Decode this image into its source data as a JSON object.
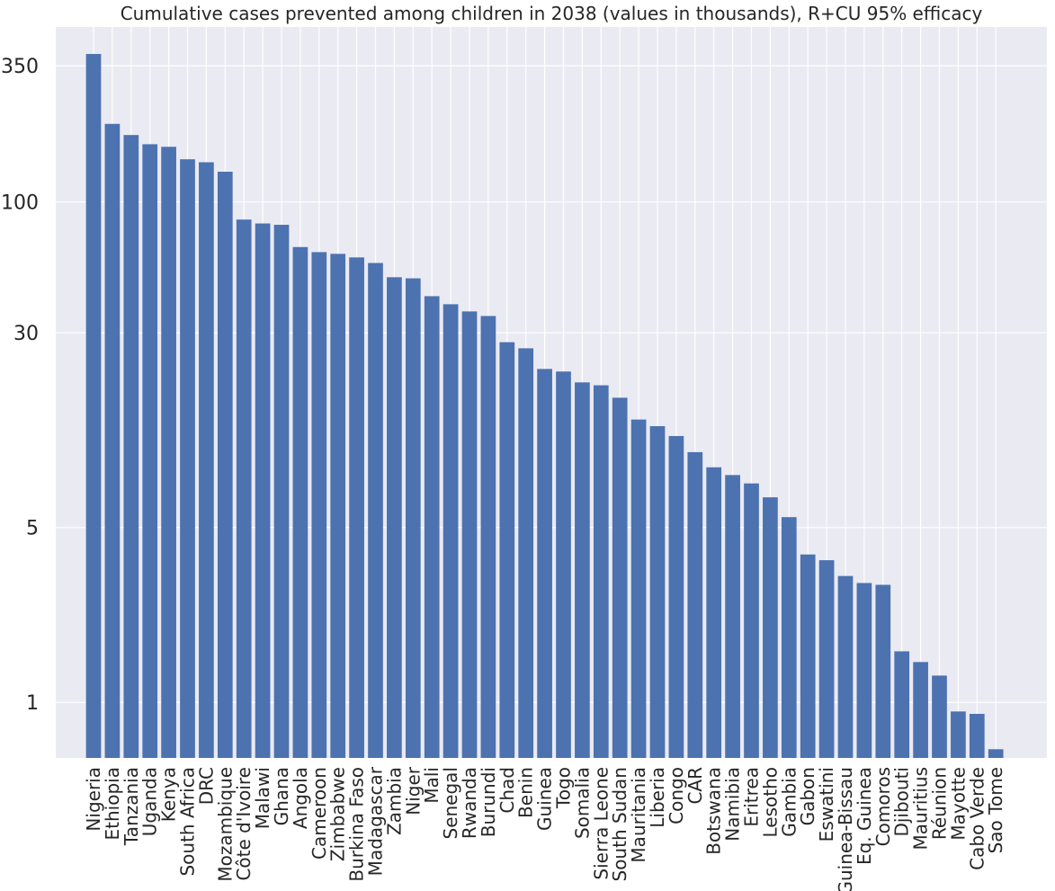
{
  "chart_data": {
    "type": "bar",
    "title": "Cumulative cases prevented among children in 2038 (values in thousands), R+CU 95% efficacy",
    "xlabel": "",
    "ylabel": "",
    "yscale": "log",
    "ylim": [
      0.6,
      500
    ],
    "yticks": [
      1,
      5,
      30,
      100,
      350
    ],
    "ytick_labels": [
      "1",
      "5",
      "30",
      "100",
      "350"
    ],
    "grid": true,
    "legend": "none",
    "colors": {
      "bar": "#4c72b0",
      "plot_bg": "#eaeaf2",
      "grid": "#ffffff"
    },
    "categories": [
      "Nigeria",
      "Ethiopia",
      "Tanzania",
      "Uganda",
      "Kenya",
      "South Africa",
      "DRC",
      "Mozambique",
      "Côte d'Ivoire",
      "Malawi",
      "Ghana",
      "Angola",
      "Cameroon",
      "Zimbabwe",
      "Burkina Faso",
      "Madagascar",
      "Zambia",
      "Niger",
      "Mali",
      "Senegal",
      "Rwanda",
      "Burundi",
      "Chad",
      "Benin",
      "Guinea",
      "Togo",
      "Somalia",
      "Sierra Leone",
      "South Sudan",
      "Mauritania",
      "Liberia",
      "Congo",
      "CAR",
      "Botswana",
      "Namibia",
      "Eritrea",
      "Lesotho",
      "Gambia",
      "Gabon",
      "Eswatini",
      "Guinea-Bissau",
      "Eq. Guinea",
      "Comoros",
      "Djibouti",
      "Mauritius",
      "Réunion",
      "Mayotte",
      "Cabo Verde",
      "Sao Tome"
    ],
    "values": [
      390,
      205,
      185,
      170,
      166,
      148,
      144,
      132,
      85,
      82,
      81,
      66,
      63,
      62,
      60,
      57,
      50,
      49.5,
      42,
      39,
      36.5,
      35,
      27.5,
      26,
      21.5,
      21,
      19,
      18.5,
      16.5,
      13.5,
      12.7,
      11.6,
      10,
      8.7,
      8.1,
      7.5,
      6.6,
      5.5,
      3.9,
      3.7,
      3.2,
      3.0,
      2.95,
      1.6,
      1.45,
      1.28,
      0.92,
      0.9,
      0.65
    ]
  }
}
